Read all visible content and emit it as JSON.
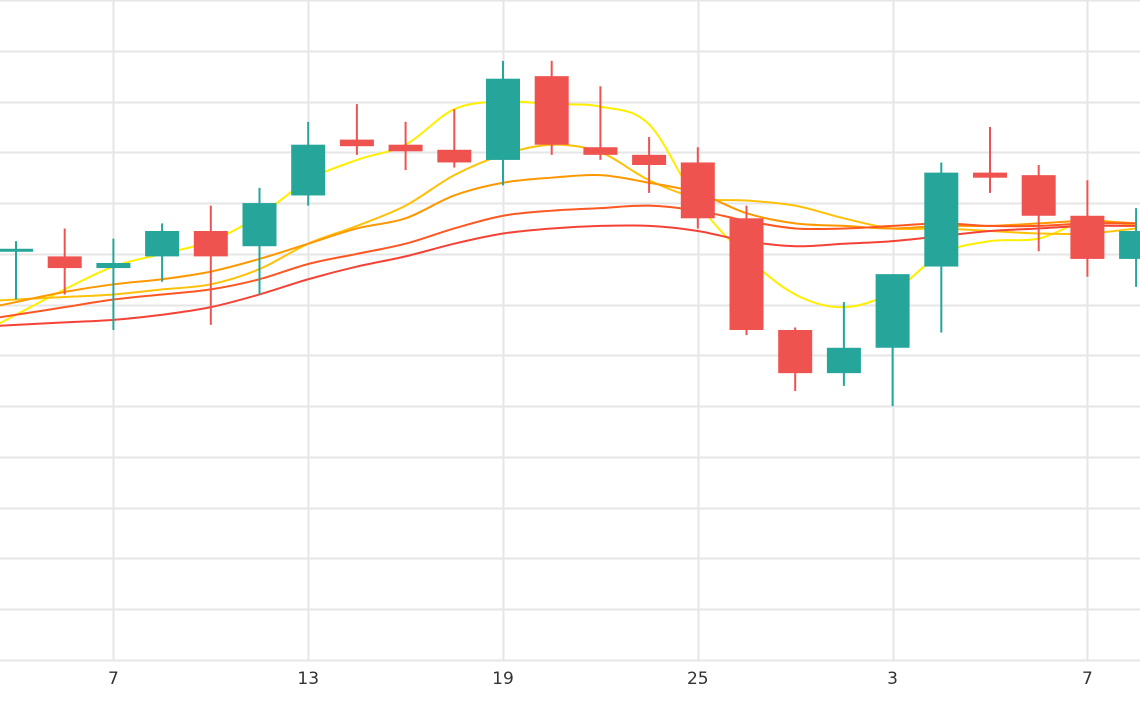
{
  "colors": {
    "background": "#ffffff",
    "grid": "#e6e6e6",
    "up": "#26a69a",
    "down": "#ef5350",
    "axis_text": "#333333"
  },
  "chart_data": {
    "type": "candlestick",
    "grid": true,
    "x_tick_labels": [
      "7",
      "13",
      "19",
      "25",
      "3",
      "7"
    ],
    "x_tick_indices": [
      2,
      6,
      10,
      14,
      18,
      22
    ],
    "ylim": [
      0,
      13
    ],
    "y_grid_step": 1,
    "candles": [
      {
        "o": 8.1,
        "h": 8.25,
        "l": 7.1,
        "c": 8.1
      },
      {
        "o": 7.95,
        "h": 8.5,
        "l": 7.2,
        "c": 7.72
      },
      {
        "o": 7.72,
        "h": 8.3,
        "l": 6.5,
        "c": 7.82
      },
      {
        "o": 7.95,
        "h": 8.6,
        "l": 7.45,
        "c": 8.45
      },
      {
        "o": 8.45,
        "h": 8.95,
        "l": 6.6,
        "c": 7.95
      },
      {
        "o": 8.15,
        "h": 9.3,
        "l": 7.2,
        "c": 9.0
      },
      {
        "o": 9.15,
        "h": 10.6,
        "l": 8.95,
        "c": 10.15
      },
      {
        "o": 10.25,
        "h": 10.95,
        "l": 9.95,
        "c": 10.12
      },
      {
        "o": 10.15,
        "h": 10.6,
        "l": 9.65,
        "c": 10.02
      },
      {
        "o": 10.05,
        "h": 10.85,
        "l": 9.7,
        "c": 9.8
      },
      {
        "o": 9.85,
        "h": 11.8,
        "l": 9.35,
        "c": 11.45
      },
      {
        "o": 11.5,
        "h": 11.8,
        "l": 9.95,
        "c": 10.15
      },
      {
        "o": 10.1,
        "h": 11.3,
        "l": 9.85,
        "c": 9.95
      },
      {
        "o": 9.95,
        "h": 10.3,
        "l": 9.2,
        "c": 9.75
      },
      {
        "o": 9.8,
        "h": 10.1,
        "l": 8.5,
        "c": 8.7
      },
      {
        "o": 8.7,
        "h": 8.95,
        "l": 6.4,
        "c": 6.5
      },
      {
        "o": 6.5,
        "h": 6.55,
        "l": 5.3,
        "c": 5.65
      },
      {
        "o": 5.65,
        "h": 7.05,
        "l": 5.4,
        "c": 6.15
      },
      {
        "o": 6.15,
        "h": 7.6,
        "l": 5.0,
        "c": 7.6
      },
      {
        "o": 7.75,
        "h": 9.8,
        "l": 6.45,
        "c": 9.6
      },
      {
        "o": 9.6,
        "h": 10.5,
        "l": 9.2,
        "c": 9.5
      },
      {
        "o": 9.55,
        "h": 9.75,
        "l": 8.05,
        "c": 8.75
      },
      {
        "o": 8.75,
        "h": 9.45,
        "l": 7.55,
        "c": 7.9
      },
      {
        "o": 7.9,
        "h": 8.9,
        "l": 7.35,
        "c": 8.45
      }
    ],
    "moving_averages": [
      {
        "color": "#ffee00",
        "values": [
          6.8,
          7.3,
          7.75,
          8.0,
          8.25,
          8.75,
          9.45,
          9.85,
          10.15,
          10.85,
          11.0,
          10.95,
          10.9,
          10.55,
          9.0,
          7.95,
          7.2,
          6.95,
          7.25,
          8.0,
          8.25,
          8.3,
          8.65,
          8.55
        ]
      },
      {
        "color": "#ffc107",
        "values": [
          7.1,
          7.15,
          7.2,
          7.3,
          7.4,
          7.7,
          8.2,
          8.55,
          8.95,
          9.55,
          9.95,
          10.15,
          10.0,
          9.45,
          9.1,
          9.05,
          8.95,
          8.7,
          8.5,
          8.5,
          8.45,
          8.4,
          8.4,
          8.5
        ]
      },
      {
        "color": "#ff9800",
        "values": [
          7.05,
          7.25,
          7.4,
          7.5,
          7.65,
          7.9,
          8.2,
          8.5,
          8.7,
          9.15,
          9.4,
          9.5,
          9.55,
          9.4,
          9.2,
          8.8,
          8.6,
          8.55,
          8.5,
          8.55,
          8.55,
          8.6,
          8.65,
          8.6
        ]
      },
      {
        "color": "#ff5722",
        "values": [
          6.8,
          6.95,
          7.1,
          7.2,
          7.3,
          7.5,
          7.8,
          8.0,
          8.2,
          8.5,
          8.75,
          8.85,
          8.9,
          8.95,
          8.85,
          8.65,
          8.5,
          8.5,
          8.55,
          8.6,
          8.55,
          8.55,
          8.6,
          8.6
        ]
      },
      {
        "color": "#f44336",
        "values": [
          6.6,
          6.65,
          6.7,
          6.8,
          6.95,
          7.2,
          7.5,
          7.75,
          7.95,
          8.2,
          8.4,
          8.5,
          8.55,
          8.55,
          8.45,
          8.25,
          8.15,
          8.2,
          8.25,
          8.35,
          8.45,
          8.5,
          8.55,
          8.55
        ]
      }
    ]
  }
}
